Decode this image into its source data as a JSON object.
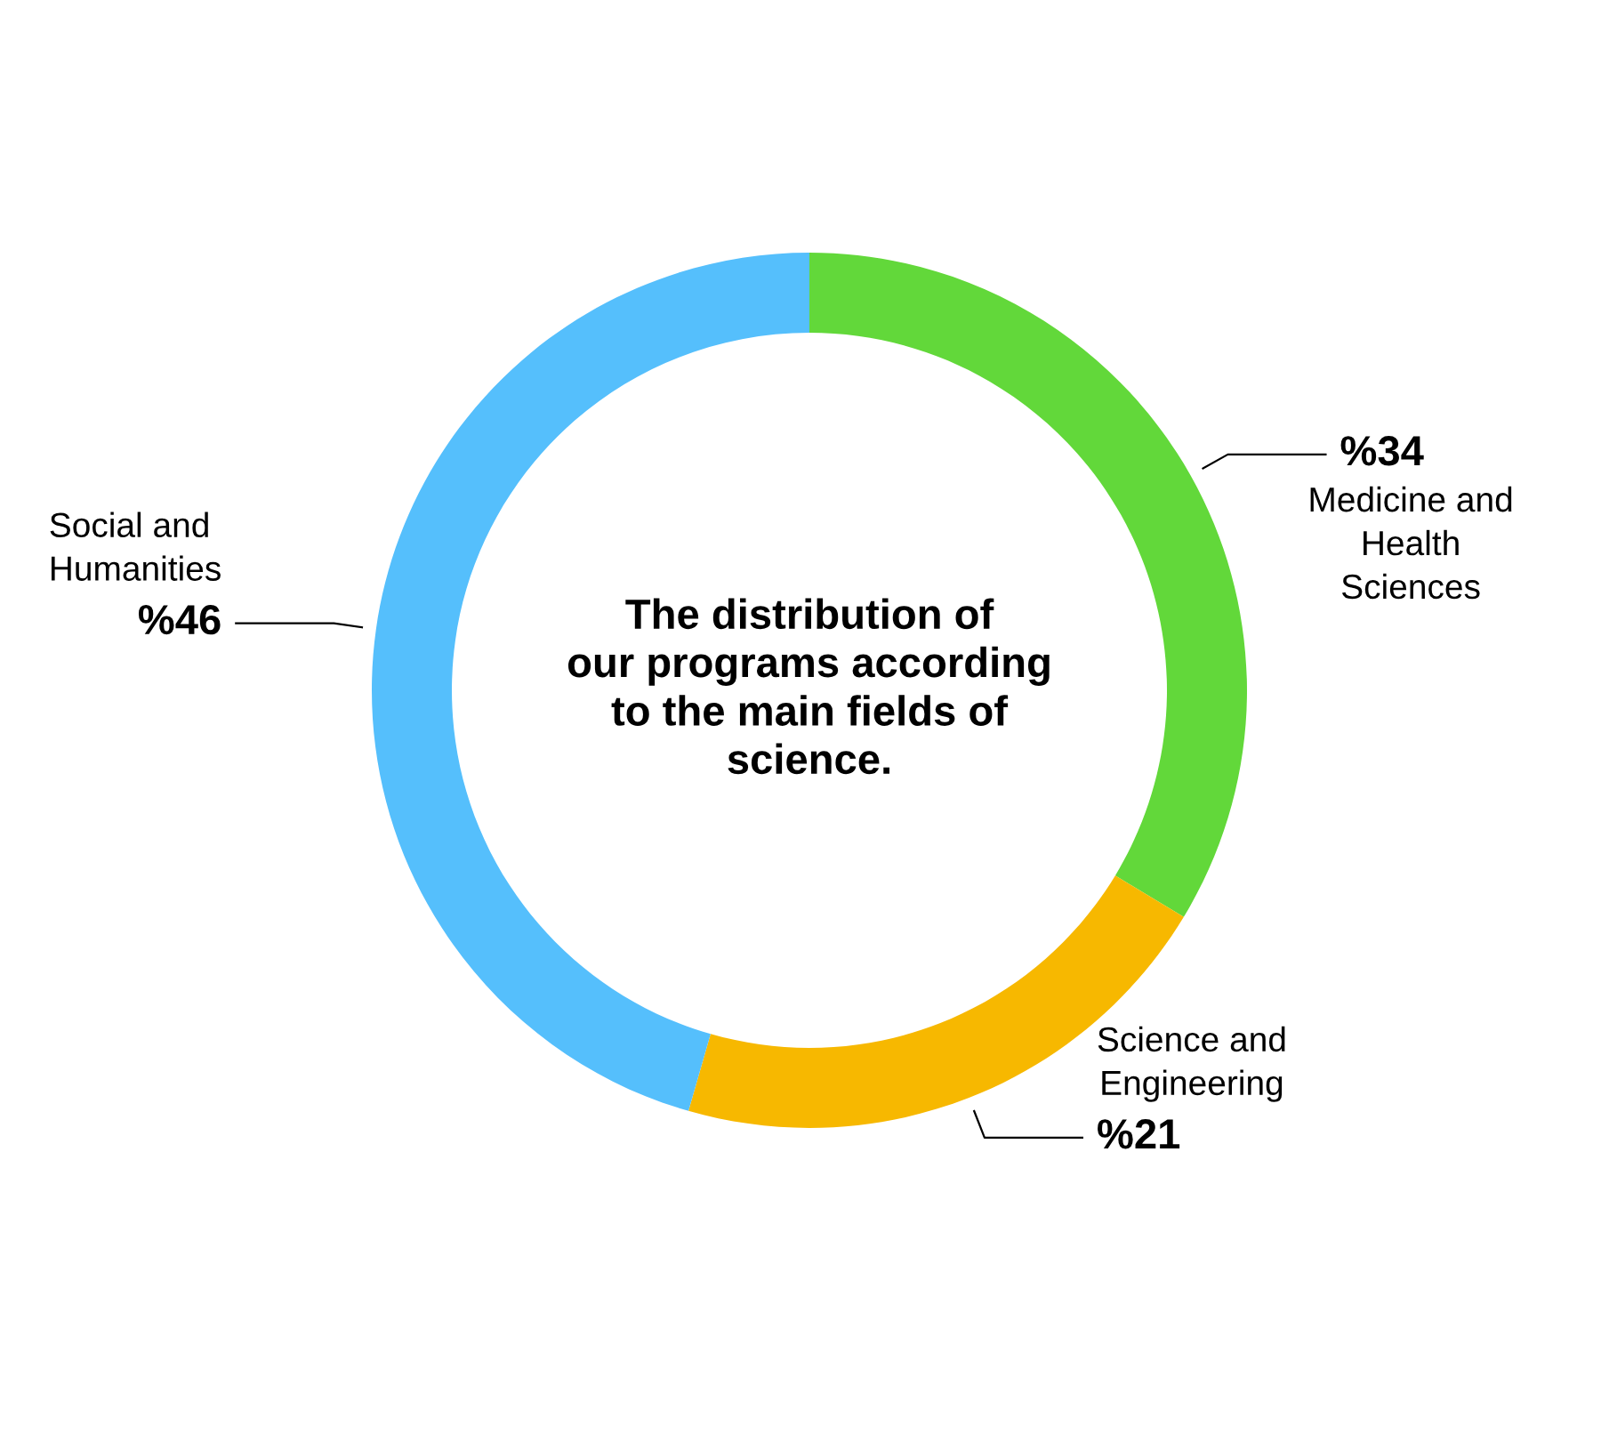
{
  "chart_data": {
    "type": "donut",
    "title": "The distribution of\nour programs according\nto the main fields of\nscience.",
    "categories": [
      "Medicine and\nHealth\nSciences",
      "Science and\nEngineering",
      "Social and\nHumanities"
    ],
    "values": [
      34,
      21,
      46
    ],
    "value_labels": [
      "%34",
      "%21",
      "%46"
    ],
    "colors": [
      "#62d83a",
      "#f7b800",
      "#55bffc"
    ],
    "legend": false
  }
}
